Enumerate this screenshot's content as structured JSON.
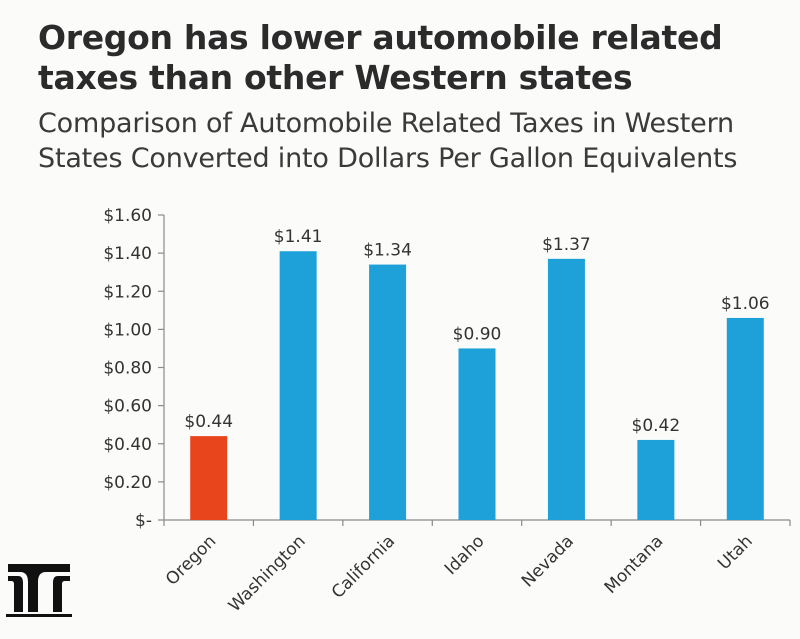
{
  "title": "Oregon has lower automobile related taxes than other Western states",
  "subtitle": "Comparison of Automobile Related Taxes in Western States Converted into Dollars Per Gallon Equivalents",
  "colors": {
    "highlight": "#e8451c",
    "bar": "#1ea1d9",
    "axis": "#8a8a8a",
    "text": "#333333"
  },
  "logo_icon": "odot-logo-icon",
  "chart_data": {
    "type": "bar",
    "categories": [
      "Oregon",
      "Washington",
      "California",
      "Idaho",
      "Nevada",
      "Montana",
      "Utah"
    ],
    "values": [
      0.44,
      1.41,
      1.34,
      0.9,
      1.37,
      0.42,
      1.06
    ],
    "data_labels": [
      "$0.44",
      "$1.41",
      "$1.34",
      "$0.90",
      "$1.37",
      "$0.42",
      "$1.06"
    ],
    "highlight_category": "Oregon",
    "yticks": [
      0,
      0.2,
      0.4,
      0.6,
      0.8,
      1.0,
      1.2,
      1.4,
      1.6
    ],
    "ytick_labels": [
      "$-",
      "$0.20",
      "$0.40",
      "$0.60",
      "$0.80",
      "$1.00",
      "$1.20",
      "$1.40",
      "$1.60"
    ],
    "ylim": [
      0,
      1.6
    ],
    "xlabel": "",
    "ylabel": "",
    "grid": false,
    "legend": false
  }
}
